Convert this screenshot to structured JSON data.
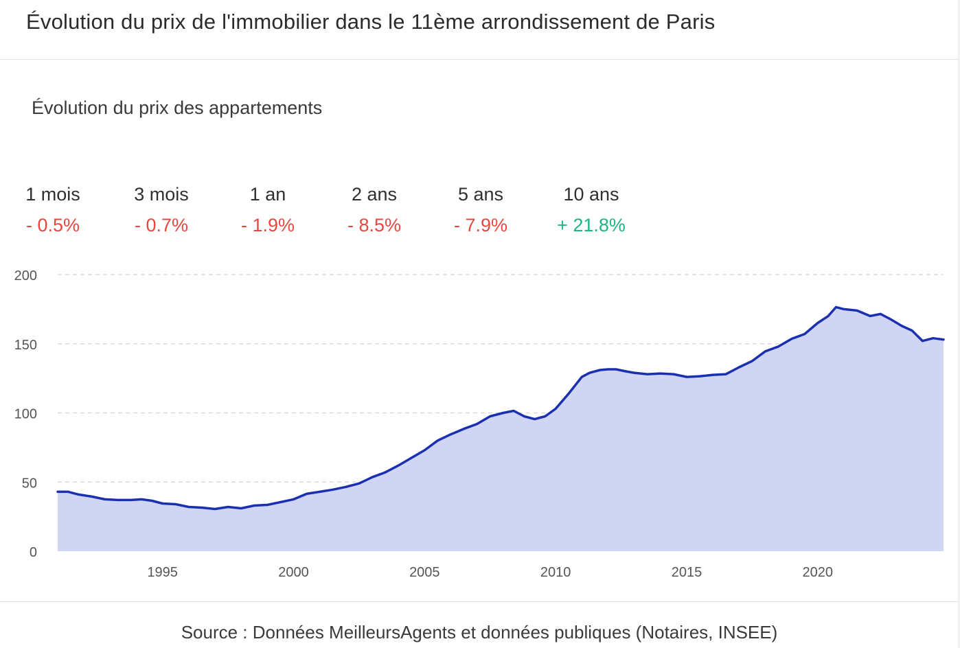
{
  "header": {
    "title": "Évolution du prix de l'immobilier dans le 11ème arrondissement de Paris"
  },
  "subtitle": "Évolution du prix des appartements",
  "stats": [
    {
      "label": "1 mois",
      "value": "- 0.5%",
      "trend": "down"
    },
    {
      "label": "3 mois",
      "value": "- 0.7%",
      "trend": "down"
    },
    {
      "label": "1 an",
      "value": "- 1.9%",
      "trend": "down"
    },
    {
      "label": "2 ans",
      "value": "- 8.5%",
      "trend": "down"
    },
    {
      "label": "5 ans",
      "value": "- 7.9%",
      "trend": "down"
    },
    {
      "label": "10 ans",
      "value": "+ 21.8%",
      "trend": "up"
    }
  ],
  "colors": {
    "down": "#e8473f",
    "up": "#1db584",
    "line": "#1a30b0",
    "area": "#d0d5f3",
    "grid": "#d9d9d9",
    "axis_text": "#555555"
  },
  "chart_data": {
    "type": "area",
    "title": "",
    "xlabel": "",
    "ylabel": "",
    "ylim": [
      0,
      200
    ],
    "xlim": [
      1991.0,
      2024.8
    ],
    "yticks": [
      "0",
      "50",
      "100",
      "150",
      "200"
    ],
    "xticks": [
      "1995",
      "2000",
      "2005",
      "2010",
      "2015",
      "2020"
    ],
    "grid": true,
    "legend": "none",
    "series": [
      {
        "x": [
          1991.0,
          1991.4,
          1991.8,
          1992.3,
          1992.8,
          1993.3,
          1993.8,
          1994.2,
          1994.6,
          1995.0,
          1995.5,
          1996.0,
          1996.5,
          1997.0,
          1997.5,
          1998.0,
          1998.5,
          1999.0,
          1999.5,
          2000.0,
          2000.5,
          2001.0,
          2001.5,
          2002.0,
          2002.5,
          2003.0,
          2003.5,
          2004.0,
          2004.5,
          2005.0,
          2005.5,
          2006.0,
          2006.5,
          2007.0,
          2007.5,
          2008.0,
          2008.4,
          2008.8,
          2009.2,
          2009.6,
          2010.0,
          2010.5,
          2011.0,
          2011.3,
          2011.7,
          2012.0,
          2012.3,
          2012.7,
          2013.0,
          2013.5,
          2014.0,
          2014.5,
          2015.0,
          2015.5,
          2016.0,
          2016.5,
          2017.0,
          2017.5,
          2018.0,
          2018.5,
          2019.0,
          2019.5,
          2020.0,
          2020.4,
          2020.7,
          2021.0,
          2021.5,
          2022.0,
          2022.4,
          2022.8,
          2023.2,
          2023.6,
          2024.0,
          2024.4,
          2024.8
        ],
        "y": [
          43,
          43,
          41,
          39.5,
          37.5,
          37,
          37,
          37.5,
          36.5,
          34.5,
          34,
          32,
          31.5,
          30.5,
          32,
          31,
          33,
          33.5,
          35.5,
          37.5,
          41.5,
          43,
          44.5,
          46.5,
          49,
          53.5,
          57,
          62,
          67.5,
          73,
          80,
          84.5,
          88.5,
          92,
          97.5,
          100,
          101.5,
          97.5,
          95.5,
          97.5,
          103,
          114,
          126,
          129,
          131,
          131.5,
          131.5,
          130,
          129,
          128,
          128.5,
          128,
          126,
          126.5,
          127.5,
          128,
          133,
          137.5,
          144.5,
          148,
          153.5,
          157,
          165,
          170,
          176.5,
          175,
          174,
          170,
          171.5,
          167.5,
          163,
          159.5,
          152,
          154,
          153
        ]
      }
    ]
  },
  "source": "Source : Données MeilleursAgents et données publiques (Notaires, INSEE)"
}
